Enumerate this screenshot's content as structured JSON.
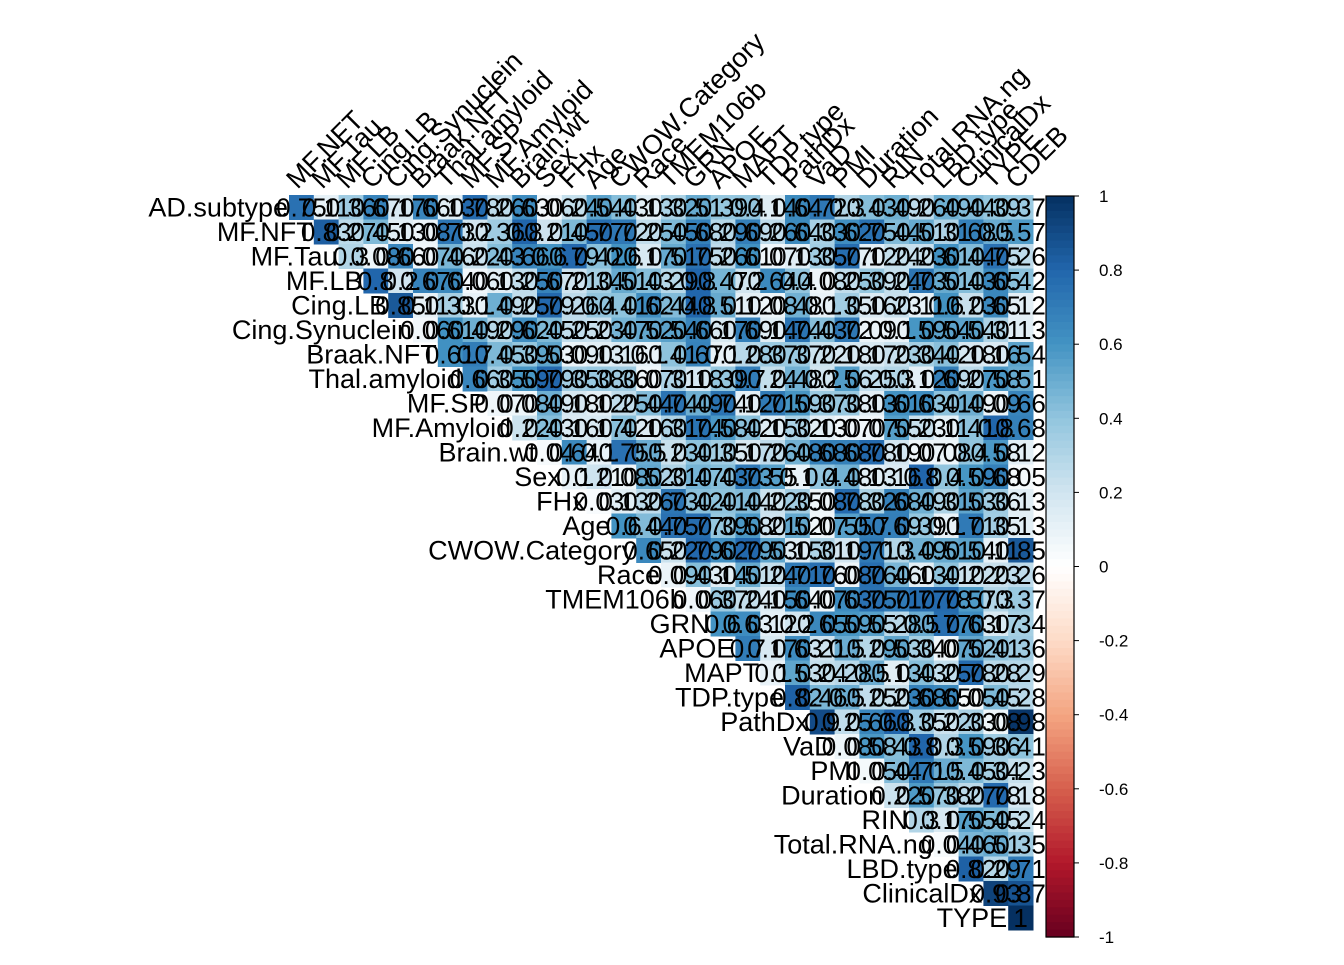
{
  "chart_data": {
    "type": "heatmap",
    "subtype": "upper-triangular correlation matrix (corrplot, method=square, addCoef)",
    "variables": [
      "AD.subtype",
      "MF.NFT",
      "MF.Tau",
      "MF.LB",
      "Cing.LB",
      "Cing.Synuclein",
      "Braak.NFT",
      "Thal.amyloid",
      "MF.SP",
      "MF.Amyloid",
      "Brain.wt",
      "Sex",
      "FHx",
      "Age",
      "CWOW.Category",
      "Race",
      "TMEM106b",
      "GRN",
      "APOE",
      "MAPT",
      "TDP.type",
      "PathDx",
      "VaD",
      "PMI",
      "Duration",
      "RIN",
      "Total.RNA.ng",
      "LBD.type",
      "ClinicalDx",
      "TYPE",
      "CDEB"
    ],
    "row_labels": [
      "AD.subtype",
      "MF.NFT",
      "MF.Tau",
      "MF.LB",
      "Cing.LB",
      "Cing.Synuclein",
      "Braak.NFT",
      "Thal.amyloid",
      "MF.SP",
      "MF.Amyloid",
      "Brain.wt",
      "Sex",
      "FHx",
      "Age",
      "CWOW.Category",
      "Race",
      "TMEM106b",
      "GRN",
      "APOE",
      "MAPT",
      "TDP.type",
      "PathDx",
      "VaD",
      "PMI",
      "Duration",
      "RIN",
      "Total.RNA.ng",
      "LBD.type",
      "ClinicalDx",
      "TYPE"
    ],
    "column_labels": [
      "MF.NFT",
      "MF.Tau",
      "MF.LB",
      "Cing.LB",
      "Cing.Synuclein",
      "Braak.NFT",
      "Thal.amyloid",
      "MF.SP",
      "MF.Amyloid",
      "Brain.wt",
      "Sex",
      "FHx",
      "Age",
      "CWOW.Category",
      "Race",
      "TMEM106b",
      "GRN",
      "APOE",
      "MAPT",
      "TDP.type",
      "PathDx",
      "VaD",
      "PMI",
      "Duration",
      "RIN",
      "Total.RNA.ng",
      "LBD.type",
      "ClinicalDx",
      "TYPE",
      "CDEB"
    ],
    "diagonal_values": {
      "AD.subtype": 0.75,
      "MF.NFT": 0.83,
      "MF.Tau": 0.3,
      "MF.LB": 0.8,
      "Cing.LB": 0.85,
      "Cing.Synuclein": 0.06,
      "Braak.NFT": 0.61,
      "Thal.amyloid": 0.66,
      "MF.SP": 0.07,
      "MF.Amyloid": 0.22,
      "Brain.wt": 0.04,
      "Sex": 0.1,
      "FHx": 0.03,
      "Age": 0.6,
      "CWOW.Category": 0.65,
      "Race": 0.09,
      "TMEM106b": 0.06,
      "GRN": 0.6,
      "APOE": 0.7,
      "MAPT": 0.1,
      "TDP.type": 0.82,
      "PathDx": 0.9,
      "VaD": 0.08,
      "PMI": 0.05,
      "Duration": 0.22,
      "RIN": 0.3,
      "Total.RNA.ng": 0.04,
      "LBD.type": 0.82,
      "ClinicalDx": 0.93,
      "TYPE": 1
    },
    "last_column_values": {
      "AD.subtype": 0.37,
      "MF.NFT": 0.57,
      "MF.Tau": 0.26,
      "MF.LB": 0.42,
      "Cing.LB": 0.12,
      "Cing.Synuclein": 0.13,
      "Braak.NFT": 0.54,
      "Thal.amyloid": 0.51,
      "MF.SP": 0.66,
      "MF.Amyloid": 0.68,
      "Brain.wt": 0.12,
      "Sex": 0.05,
      "FHx": 0.13,
      "Age": 0.13,
      "CWOW.Category": 0.85,
      "Race": 0.26,
      "TMEM106b": 0.37,
      "GRN": 0.34,
      "APOE": 0.36,
      "MAPT": 0.29,
      "TDP.type": 0.28,
      "PathDx": 0.98,
      "VaD": 0.41,
      "PMI": 0.23,
      "Duration": 0.18,
      "RIN": 0.24,
      "Total.RNA.ng": 0.35,
      "LBD.type": 0.71,
      "ClinicalDx": 0.87,
      "TYPE": 1
    },
    "color_scale": {
      "min": -1,
      "max": 1,
      "ticks": [
        "1",
        "0.8",
        "0.6",
        "0.4",
        "0.2",
        "0",
        "-0.2",
        "-0.4",
        "-0.6",
        "-0.8",
        "-1"
      ],
      "colors": [
        "#67001F",
        "#B2182B",
        "#D6604D",
        "#F4A582",
        "#FDDBC7",
        "#FFFFFF",
        "#D1E5F0",
        "#92C5DE",
        "#4393C3",
        "#2166AC",
        "#053061"
      ]
    },
    "legend_placement": "right",
    "grid": false
  }
}
